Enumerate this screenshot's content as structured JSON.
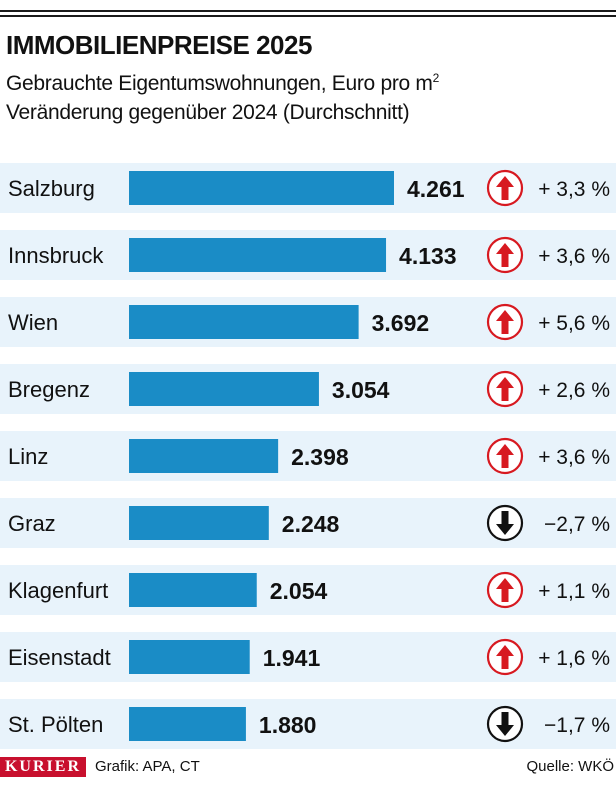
{
  "header": {
    "title": "IMMOBILIENPREISE 2025",
    "subtitle_line1_main": "Gebrauchte Eigentumswohnungen, Euro pro m",
    "subtitle_line1_sup": "2",
    "subtitle_line2": "Veränderung gegenüber 2024 (Durchschnitt)"
  },
  "chart_data": {
    "type": "bar",
    "orientation": "horizontal",
    "title": "IMMOBILIENPREISE 2025",
    "categories": [
      "Salzburg",
      "Innsbruck",
      "Wien",
      "Bregenz",
      "Linz",
      "Graz",
      "Klagenfurt",
      "Eisenstadt",
      "St. Pölten"
    ],
    "values": [
      4261,
      4133,
      3692,
      3054,
      2398,
      2248,
      2054,
      1941,
      1880
    ],
    "value_labels": [
      "4.261",
      "4.133",
      "3.692",
      "3.054",
      "2.398",
      "2.248",
      "2.054",
      "1.941",
      "1.880"
    ],
    "change_labels": [
      "+ 3,3 %",
      "+ 3,6 %",
      "+ 5,6 %",
      "+ 2,6 %",
      "+ 3,6 %",
      "−2,7 %",
      "+ 1,1 %",
      "+ 1,6 %",
      "−1,7 %"
    ],
    "change_direction": [
      "up",
      "up",
      "up",
      "up",
      "up",
      "down",
      "up",
      "up",
      "down"
    ],
    "bar_color": "#1a8cc6",
    "row_band_color": "#e8f3fb",
    "up_color": "#d71920",
    "down_color": "#111111"
  },
  "footer": {
    "logo": "KURIER",
    "credit": "Grafik: APA, CT",
    "source": "Quelle: WKÖ"
  }
}
